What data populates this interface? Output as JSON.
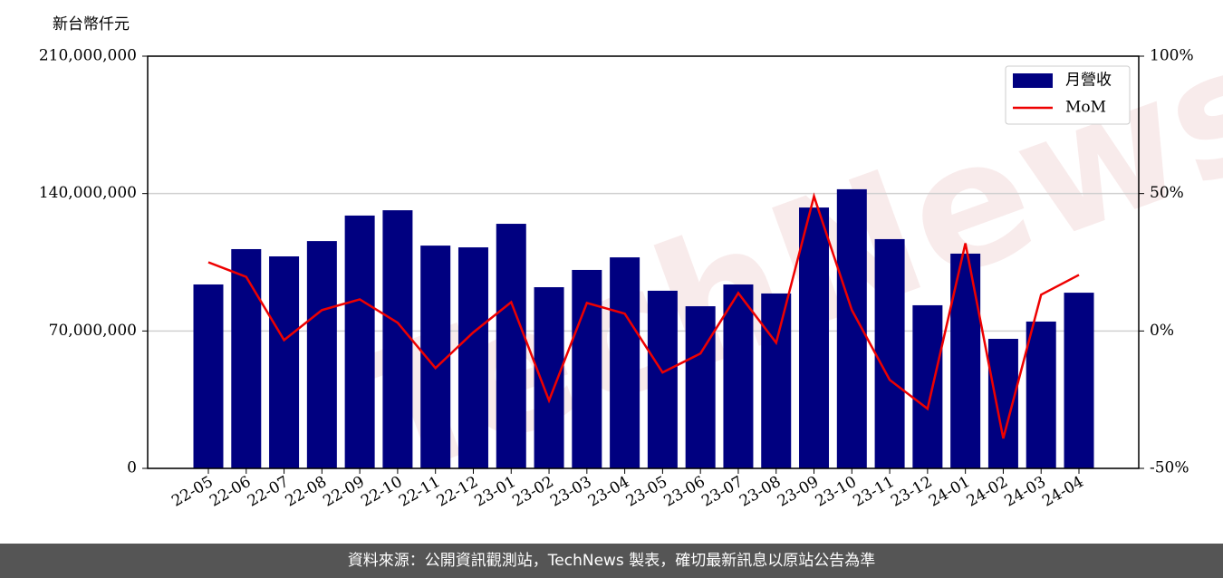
{
  "chart_data": {
    "type": "bar_line",
    "y_axis_label": "新台幣仟元",
    "categories": [
      "22-05",
      "22-06",
      "22-07",
      "22-08",
      "22-09",
      "22-10",
      "22-11",
      "22-12",
      "23-01",
      "23-02",
      "23-03",
      "23-04",
      "23-05",
      "23-06",
      "23-07",
      "23-08",
      "23-09",
      "23-10",
      "23-11",
      "23-12",
      "24-01",
      "24-02",
      "24-03",
      "24-04"
    ],
    "series": [
      {
        "name": "月營收",
        "color": "#000080",
        "axis": "y",
        "values": [
          93700000,
          111700000,
          108000000,
          115800000,
          128800000,
          131500000,
          113500000,
          112600000,
          124600000,
          92300000,
          101100000,
          107500000,
          90500000,
          82600000,
          93700000,
          89100000,
          132900000,
          142200000,
          116800000,
          83100000,
          109400000,
          66000000,
          74800000,
          89500000
        ]
      },
      {
        "name": "MoM",
        "color": "#ee0000",
        "axis": "y2",
        "values": [
          25.0,
          19.7,
          -3.3,
          7.6,
          11.5,
          3.0,
          -13.5,
          -0.5,
          10.5,
          -25.3,
          10.2,
          6.3,
          -15.1,
          -8.2,
          13.8,
          -4.3,
          49.0,
          7.6,
          -17.8,
          -28.3,
          31.9,
          -39.1,
          13.2,
          20.4
        ]
      }
    ],
    "ylim": [
      0,
      210000000
    ],
    "yticks": [
      0,
      {
        "value": 70000000,
        "label": "70,000,000"
      },
      {
        "value": 140000000,
        "label": "140,000,000"
      },
      {
        "value": 210000000,
        "label": "210,000,000"
      }
    ],
    "y2lim": [
      -50,
      100
    ],
    "y2ticks": [
      {
        "value": -50,
        "label": "-50%"
      },
      {
        "value": 0,
        "label": "0%"
      },
      {
        "value": 50,
        "label": "50%"
      },
      {
        "value": 100,
        "label": "100%"
      }
    ],
    "grid": true,
    "legend": "upper right",
    "watermark": "TechNews",
    "source_note": "資料來源：公開資訊觀測站，TechNews 製表，確切最新訊息以原站公告為準"
  }
}
